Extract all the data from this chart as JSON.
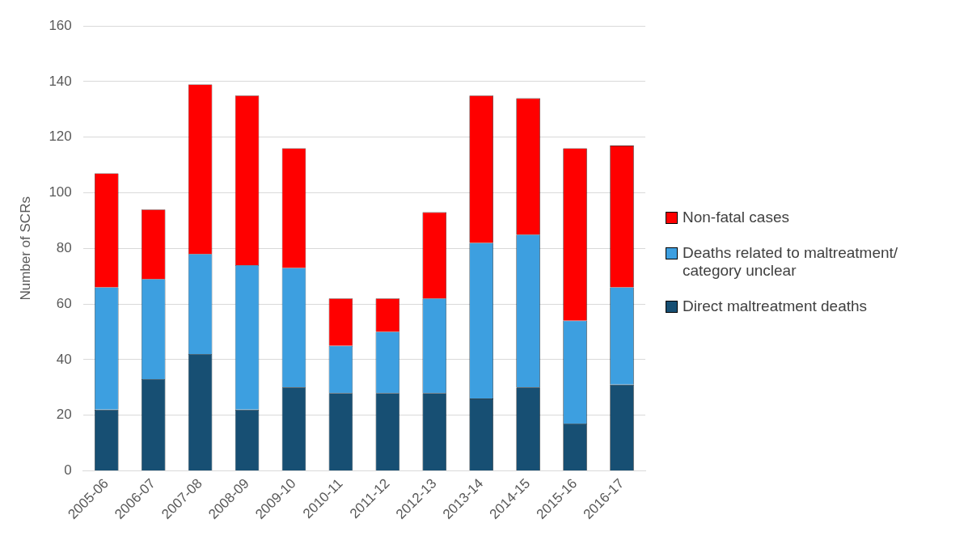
{
  "chart_data": {
    "type": "bar",
    "stacked": true,
    "ylabel": "Number of SCRs",
    "categories": [
      "2005-06",
      "2006-07",
      "2007-08",
      "2008-09",
      "2009-10",
      "2010-11",
      "2011-12",
      "2012-13",
      "2013-14",
      "2014-15",
      "2015-16",
      "2016-17"
    ],
    "series": [
      {
        "name": "Direct maltreatment deaths",
        "color": "#174f73",
        "values": [
          22,
          33,
          42,
          22,
          30,
          28,
          28,
          28,
          26,
          30,
          17,
          31
        ]
      },
      {
        "name": "Deaths related to maltreatment/ category unclear",
        "color": "#3d9fe0",
        "values": [
          44,
          36,
          36,
          52,
          43,
          17,
          22,
          34,
          56,
          55,
          37,
          35
        ]
      },
      {
        "name": "Non-fatal cases",
        "color": "#ff0000",
        "values": [
          41,
          25,
          61,
          61,
          43,
          17,
          12,
          31,
          53,
          49,
          62,
          51
        ]
      }
    ],
    "ylim": [
      0,
      160
    ],
    "yticks": [
      0,
      20,
      40,
      60,
      80,
      100,
      120,
      140,
      160
    ],
    "grid": "y",
    "legend": "right"
  }
}
